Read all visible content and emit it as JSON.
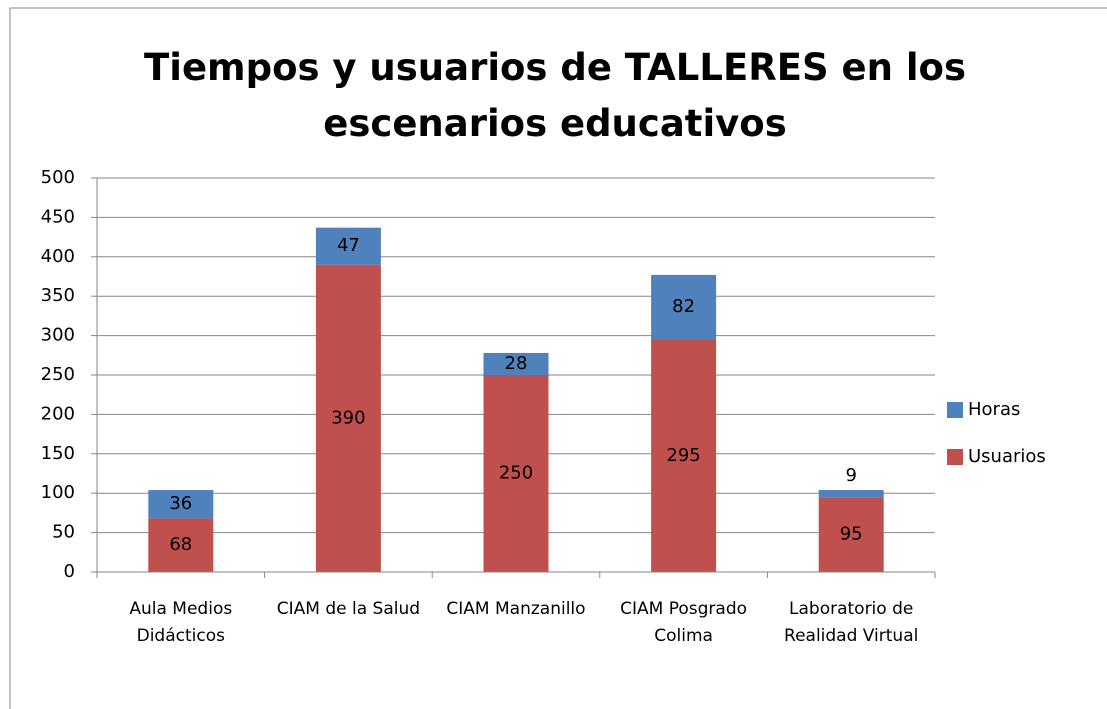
{
  "chart_data": {
    "type": "stacked_bar",
    "title": "Tiempos y usuarios de TALLERES en los escenarios educativos",
    "categories": [
      "Aula Medios Didácticos",
      "CIAM de la Salud",
      "CIAM Manzanillo",
      "CIAM Posgrado Colima",
      "Laboratorio de Realidad Virtual"
    ],
    "series": [
      {
        "name": "Usuarios",
        "color": "#c0504d",
        "values": [
          68,
          390,
          250,
          295,
          95
        ]
      },
      {
        "name": "Horas",
        "color": "#4f81bd",
        "values": [
          36,
          47,
          28,
          82,
          9
        ]
      }
    ],
    "ylim": [
      0,
      500
    ],
    "yticks": [
      0,
      50,
      100,
      150,
      200,
      250,
      300,
      350,
      400,
      450,
      500
    ],
    "grid": true,
    "legend": "right"
  }
}
